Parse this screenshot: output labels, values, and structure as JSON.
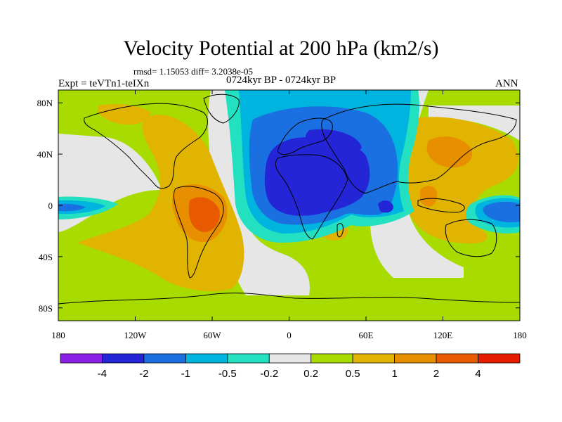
{
  "title": "Velocity Potential at 200 hPa (km2/s)",
  "stats": "rmsd= 1.15053 diff= 3.2038e-05",
  "experiment": "Expt = teVTn1-teIXn",
  "period": "0724kyr BP - 0724kyr BP",
  "season": "ANN",
  "map": {
    "projection": "cylindrical equidistant",
    "lon_range": [
      -180,
      180
    ],
    "lat_range": [
      -90,
      90
    ],
    "lat_ticks": [
      {
        "lat": 80,
        "label": "80N"
      },
      {
        "lat": 40,
        "label": "40N"
      },
      {
        "lat": 0,
        "label": "0"
      },
      {
        "lat": -40,
        "label": "40S"
      },
      {
        "lat": -80,
        "label": "80S"
      }
    ],
    "lon_ticks": [
      {
        "lon": -180,
        "label": "180"
      },
      {
        "lon": -120,
        "label": "120W"
      },
      {
        "lon": -60,
        "label": "60W"
      },
      {
        "lon": 0,
        "label": "0"
      },
      {
        "lon": 60,
        "label": "60E"
      },
      {
        "lon": 120,
        "label": "120E"
      },
      {
        "lon": 180,
        "label": "180"
      }
    ]
  },
  "colorbar": {
    "colors": [
      "#8a1fe6",
      "#2525d8",
      "#1a70e0",
      "#00b4e0",
      "#22e0c0",
      "#e6e6e6",
      "#a8dc00",
      "#e0b400",
      "#e88f00",
      "#e85a00",
      "#e61b00"
    ],
    "labels": [
      "-4",
      "-2",
      "-1",
      "-0.5",
      "-0.2",
      "0.2",
      "0.5",
      "1",
      "2",
      "4"
    ]
  },
  "chart_data": {
    "type": "map",
    "title": "Velocity Potential at 200 hPa (km2/s)",
    "variable": "velocity potential difference",
    "contour_levels": [
      -4,
      -2,
      -1,
      -0.5,
      -0.2,
      0.2,
      0.5,
      1,
      2,
      4
    ],
    "features": [
      {
        "name": "Africa/Eurasia minimum",
        "lon_range": [
          -20,
          70
        ],
        "lat_range": [
          -30,
          60
        ],
        "min_level": -2
      },
      {
        "name": "Indian Ocean secondary minimum",
        "lon": 75,
        "lat": 0,
        "min_level": -2
      },
      {
        "name": "South America maximum",
        "lon_range": [
          -75,
          -40
        ],
        "lat_range": [
          -30,
          0
        ],
        "max_level": 2
      },
      {
        "name": "Western Pacific maximum",
        "lon_range": [
          100,
          160
        ],
        "lat_range": [
          -20,
          50
        ],
        "max_level": 2
      },
      {
        "name": "Central Pacific negative",
        "lon_range": [
          150,
          180
        ],
        "lat_range": [
          -10,
          10
        ],
        "min_level": -1
      },
      {
        "name": "Eastern Pacific negative",
        "lon_range": [
          -180,
          -150
        ],
        "lat_range": [
          -10,
          10
        ],
        "min_level": -1
      }
    ]
  }
}
